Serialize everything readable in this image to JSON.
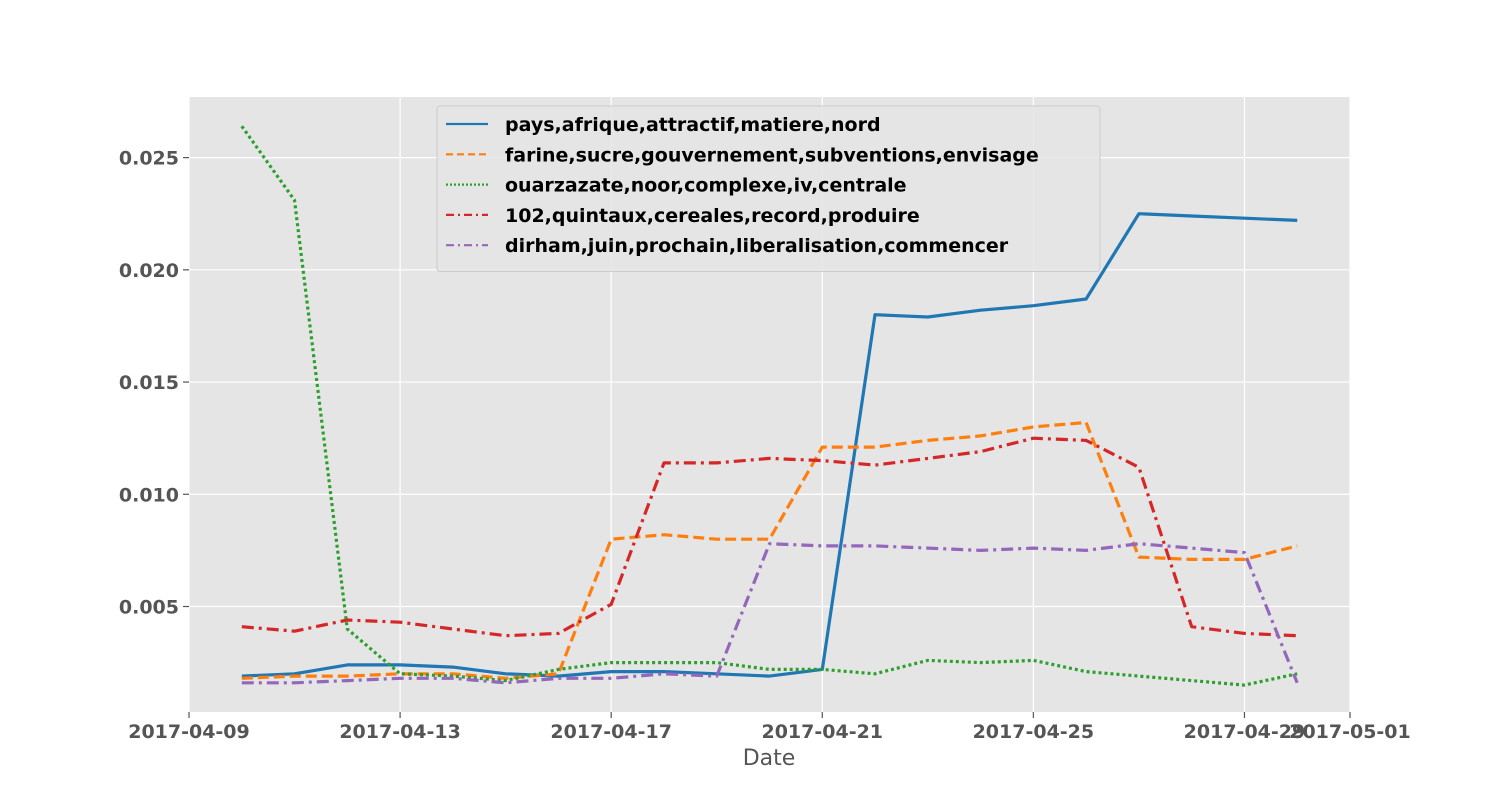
{
  "chart_data": {
    "type": "line",
    "title": "",
    "xlabel": "Date",
    "ylabel": "",
    "x_tick_labels": [
      "2017-04-09",
      "2017-04-13",
      "2017-04-17",
      "2017-04-21",
      "2017-04-25",
      "2017-04-29",
      "2017-05-01"
    ],
    "y_tick_labels": [
      "0.005",
      "0.010",
      "0.015",
      "0.020",
      "0.025"
    ],
    "xlim": [
      "2017-04-09",
      "2017-05-01"
    ],
    "ylim": [
      0.0003,
      0.0277
    ],
    "grid": true,
    "legend_position": "upper-center",
    "dates": [
      "2017-04-10",
      "2017-04-11",
      "2017-04-12",
      "2017-04-13",
      "2017-04-14",
      "2017-04-15",
      "2017-04-16",
      "2017-04-17",
      "2017-04-18",
      "2017-04-19",
      "2017-04-20",
      "2017-04-21",
      "2017-04-22",
      "2017-04-23",
      "2017-04-24",
      "2017-04-25",
      "2017-04-26",
      "2017-04-27",
      "2017-04-28",
      "2017-04-29",
      "2017-04-30"
    ],
    "series": [
      {
        "name": "pays,afrique,attractif,matiere,nord",
        "color": "#1f77b4",
        "style": "solid",
        "values": [
          0.0019,
          0.002,
          0.0024,
          0.0024,
          0.0023,
          0.002,
          0.0019,
          0.0021,
          0.0021,
          0.002,
          0.0019,
          0.0022,
          0.018,
          0.0179,
          0.0182,
          0.0184,
          0.0187,
          0.0225,
          0.0224,
          0.0223,
          0.0222
        ]
      },
      {
        "name": "farine,sucre,gouvernement,subventions,envisage",
        "color": "#ff7f0e",
        "style": "dashed",
        "values": [
          0.0018,
          0.0019,
          0.0019,
          0.002,
          0.002,
          0.0018,
          0.002,
          0.008,
          0.0082,
          0.008,
          0.008,
          0.0121,
          0.0121,
          0.0124,
          0.0126,
          0.013,
          0.0132,
          0.0072,
          0.0071,
          0.0071,
          0.0077
        ]
      },
      {
        "name": "ouarzazate,noor,complexe,iv,centrale",
        "color": "#2ca02c",
        "style": "dotted",
        "values": [
          0.0264,
          0.0231,
          0.004,
          0.002,
          0.0019,
          0.0017,
          0.0022,
          0.0025,
          0.0025,
          0.0025,
          0.0022,
          0.0022,
          0.002,
          0.0026,
          0.0025,
          0.0026,
          0.0021,
          0.0019,
          0.0017,
          0.0015,
          0.002
        ]
      },
      {
        "name": "102,quintaux,cereales,record,produire",
        "color": "#d62728",
        "style": "dashdot",
        "values": [
          0.0041,
          0.0039,
          0.0044,
          0.0043,
          0.004,
          0.0037,
          0.0038,
          0.0051,
          0.0114,
          0.0114,
          0.0116,
          0.0115,
          0.0113,
          0.0116,
          0.0119,
          0.0125,
          0.0124,
          0.0112,
          0.0041,
          0.0038,
          0.0037
        ]
      },
      {
        "name": "dirham,juin,prochain,liberalisation,commencer",
        "color": "#9467bd",
        "style": "dashdot",
        "values": [
          0.0016,
          0.0016,
          0.0017,
          0.0018,
          0.0018,
          0.0016,
          0.0018,
          0.0018,
          0.002,
          0.0019,
          0.0078,
          0.0077,
          0.0077,
          0.0076,
          0.0075,
          0.0076,
          0.0075,
          0.0078,
          0.0076,
          0.0074,
          0.0016
        ]
      }
    ]
  }
}
